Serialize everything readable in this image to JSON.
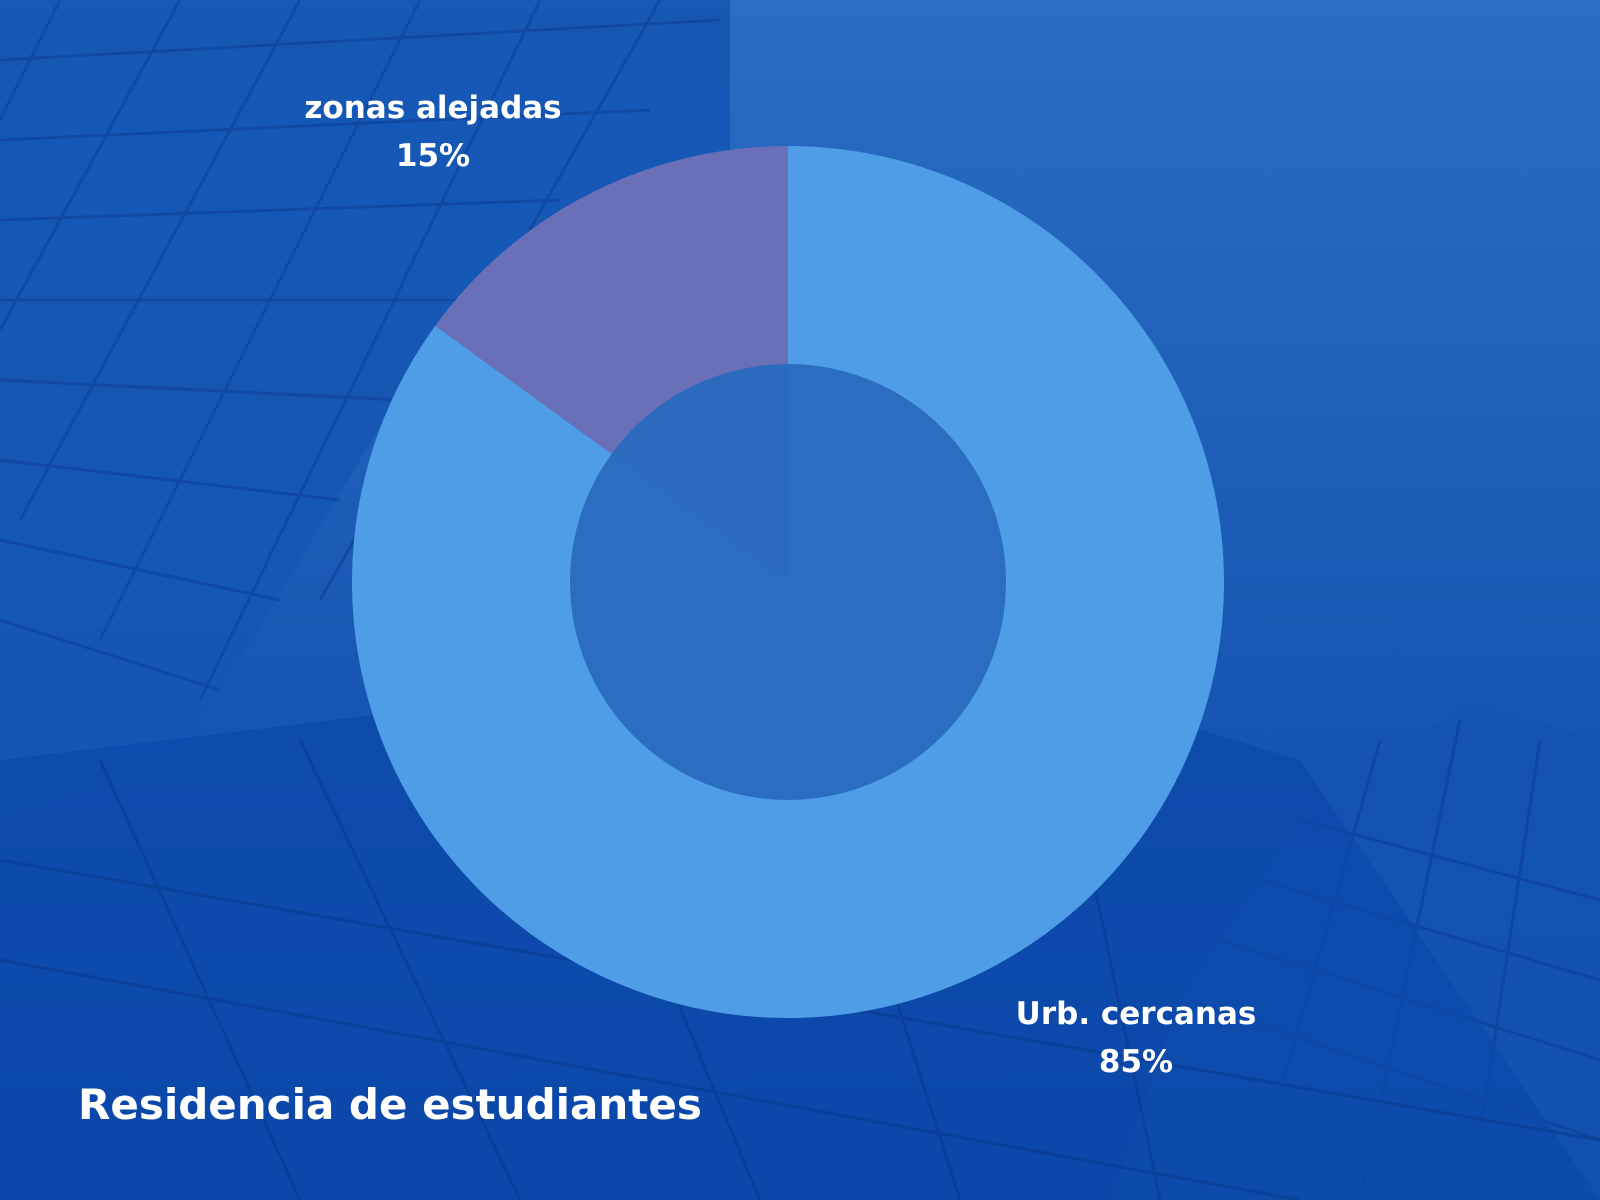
{
  "colors": {
    "background_top": "#2a6dc2",
    "background_bottom": "#0a46a8",
    "hole": "#2869bd"
  },
  "chart_data": {
    "type": "pie",
    "style": "donut",
    "title": "Residencia de estudiantes",
    "series": [
      {
        "name": "Urb. cercanas",
        "value": 85,
        "label": "85%",
        "color": "#4e9de6"
      },
      {
        "name": "zonas alejadas",
        "value": 15,
        "label": "15%",
        "color": "#6a70b8"
      }
    ],
    "legend": "none",
    "data_labels": "category-and-percent"
  }
}
